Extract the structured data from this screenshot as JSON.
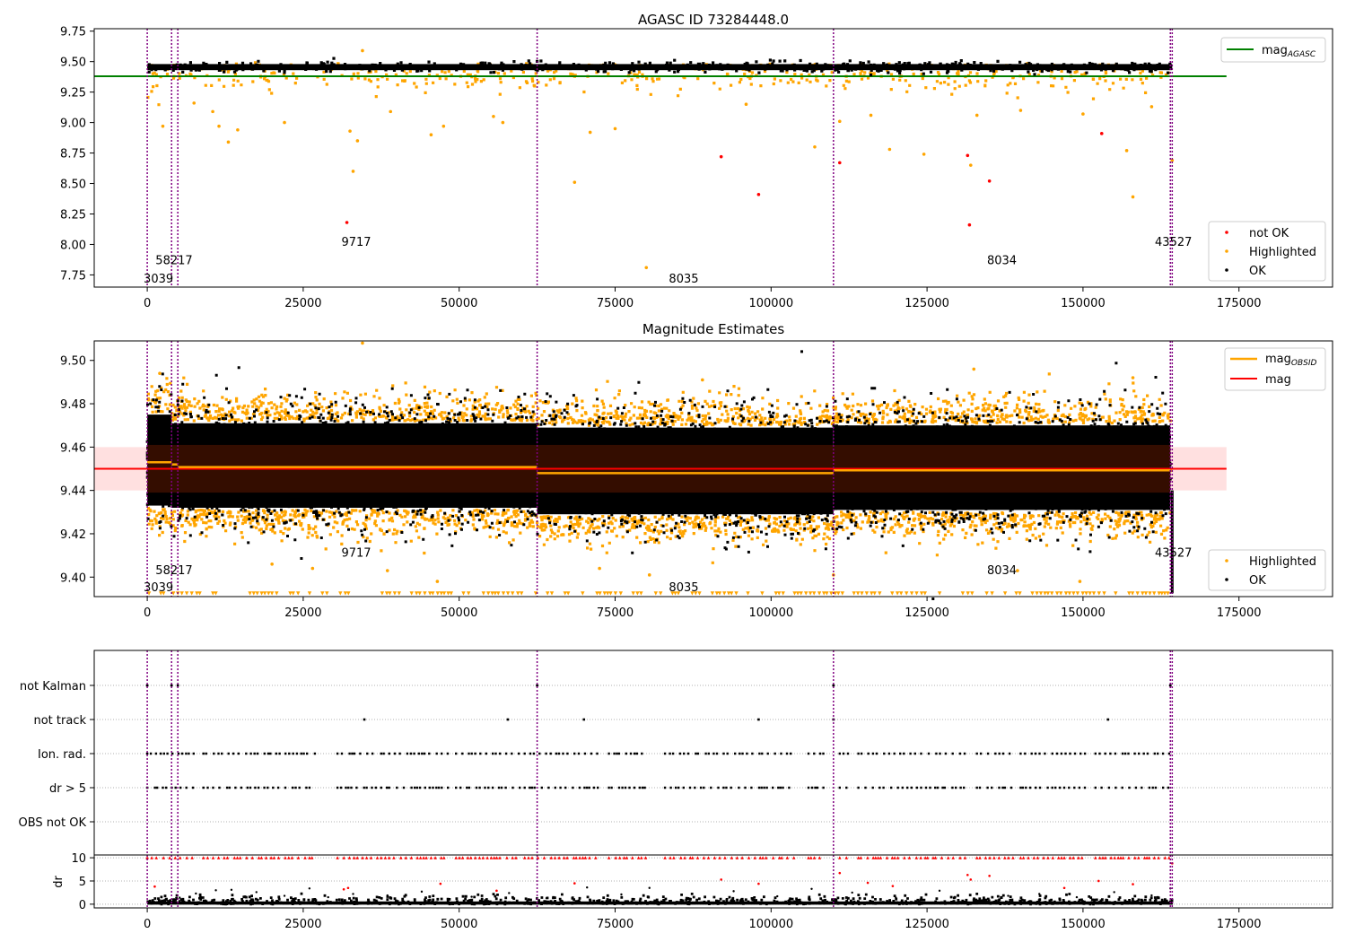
{
  "chart_data": [
    {
      "type": "scatter",
      "title": "AGASC ID 73284448.0",
      "xlim": [
        -8500,
        190000
      ],
      "ylim": [
        7.65,
        9.77
      ],
      "x_ticks": [
        0,
        25000,
        50000,
        75000,
        100000,
        125000,
        150000,
        175000
      ],
      "y_ticks": [
        7.75,
        8.0,
        8.25,
        8.5,
        8.75,
        9.0,
        9.25,
        9.5,
        9.75
      ],
      "y_tick_labels": [
        "7.75",
        "8.00",
        "8.25",
        "8.50",
        "8.75",
        "9.00",
        "9.25",
        "9.50",
        "9.75"
      ],
      "reference_line": {
        "name": "mag",
        "subscript": "AGASC",
        "value": 9.38,
        "x_range": [
          -8500,
          173000
        ],
        "color": "#008000"
      },
      "obsid_boundaries": [
        0,
        3900,
        4900,
        62500,
        110000,
        164000,
        164300
      ],
      "obsid_labels": [
        {
          "text": "3039",
          "x": 1800,
          "y": 7.725
        },
        {
          "text": "58217",
          "x": 4300,
          "y": 7.875
        },
        {
          "text": "9717",
          "x": 33500,
          "y": 8.025
        },
        {
          "text": "8035",
          "x": 86000,
          "y": 7.725
        },
        {
          "text": "8034",
          "x": 137000,
          "y": 7.875
        },
        {
          "text": "43527",
          "x": 164500,
          "y": 8.025
        }
      ],
      "ok_band": {
        "y_center": 9.455,
        "y_halfwidth": 0.025
      },
      "not_ok_points": [
        {
          "x": 32000,
          "y": 8.18
        },
        {
          "x": 92000,
          "y": 8.72
        },
        {
          "x": 98000,
          "y": 8.41
        },
        {
          "x": 111000,
          "y": 8.67
        },
        {
          "x": 131500,
          "y": 8.73
        },
        {
          "x": 131800,
          "y": 8.16
        },
        {
          "x": 135000,
          "y": 8.52
        },
        {
          "x": 153000,
          "y": 8.91
        }
      ],
      "highlighted_points": [
        {
          "x": 2500,
          "y": 8.97
        },
        {
          "x": 7500,
          "y": 9.16
        },
        {
          "x": 10500,
          "y": 9.09
        },
        {
          "x": 11500,
          "y": 8.97
        },
        {
          "x": 13000,
          "y": 8.84
        },
        {
          "x": 14500,
          "y": 8.94
        },
        {
          "x": 22000,
          "y": 9.0
        },
        {
          "x": 32500,
          "y": 8.93
        },
        {
          "x": 33000,
          "y": 8.6
        },
        {
          "x": 33700,
          "y": 8.85
        },
        {
          "x": 34500,
          "y": 9.59
        },
        {
          "x": 39000,
          "y": 9.09
        },
        {
          "x": 45500,
          "y": 8.9
        },
        {
          "x": 47500,
          "y": 8.97
        },
        {
          "x": 55500,
          "y": 9.05
        },
        {
          "x": 57000,
          "y": 9.0
        },
        {
          "x": 68500,
          "y": 8.51
        },
        {
          "x": 71000,
          "y": 8.92
        },
        {
          "x": 75000,
          "y": 8.95
        },
        {
          "x": 80000,
          "y": 7.81
        },
        {
          "x": 96000,
          "y": 9.15
        },
        {
          "x": 107000,
          "y": 8.8
        },
        {
          "x": 111000,
          "y": 9.01
        },
        {
          "x": 116000,
          "y": 9.06
        },
        {
          "x": 119000,
          "y": 8.78
        },
        {
          "x": 124500,
          "y": 8.74
        },
        {
          "x": 132000,
          "y": 8.65
        },
        {
          "x": 133000,
          "y": 9.06
        },
        {
          "x": 140000,
          "y": 9.1
        },
        {
          "x": 150000,
          "y": 9.07
        },
        {
          "x": 157000,
          "y": 8.77
        },
        {
          "x": 158000,
          "y": 8.39
        },
        {
          "x": 161000,
          "y": 9.13
        },
        {
          "x": 164300,
          "y": 8.69
        }
      ],
      "legends": [
        {
          "entries": [
            {
              "label": "mag",
              "subscript": "AGASC",
              "kind": "line",
              "color": "#008000"
            }
          ],
          "placement": "upper right"
        },
        {
          "entries": [
            {
              "label": "not OK",
              "kind": "dot",
              "color": "#ff0000"
            },
            {
              "label": "Highlighted",
              "kind": "dot",
              "color": "#ffa500"
            },
            {
              "label": "OK",
              "kind": "dot",
              "color": "#000000"
            }
          ],
          "placement": "lower right"
        }
      ]
    },
    {
      "type": "scatter",
      "title": "Magnitude Estimates",
      "xlim": [
        -8500,
        190000
      ],
      "ylim": [
        9.391,
        9.509
      ],
      "x_ticks": [
        0,
        25000,
        50000,
        75000,
        100000,
        125000,
        150000,
        175000
      ],
      "y_ticks": [
        9.4,
        9.42,
        9.44,
        9.46,
        9.48,
        9.5
      ],
      "y_tick_labels": [
        "9.40",
        "9.42",
        "9.44",
        "9.46",
        "9.48",
        "9.50"
      ],
      "mean_mag": {
        "name": "mag",
        "value": 9.45,
        "band": [
          9.44,
          9.46
        ],
        "x_range": [
          -8500,
          173000
        ],
        "color": "#ff0000"
      },
      "obsid_mags": {
        "name": "mag",
        "subscript": "OBSID",
        "color": "#ffa500",
        "segments": [
          {
            "x0": 0,
            "x1": 3900,
            "mag": 9.453
          },
          {
            "x0": 3900,
            "x1": 4900,
            "mag": 9.452
          },
          {
            "x0": 4900,
            "x1": 62500,
            "mag": 9.4508
          },
          {
            "x0": 62500,
            "x1": 110000,
            "mag": 9.448
          },
          {
            "x0": 110000,
            "x1": 164000,
            "mag": 9.4493
          },
          {
            "x0": 164000,
            "x1": 164300,
            "mag": 9.449
          }
        ]
      },
      "obsid_boundaries": [
        0,
        3900,
        4900,
        62500,
        110000,
        164000,
        164300
      ],
      "obsid_labels": [
        {
          "text": "3039",
          "x": 1800,
          "y": 9.3955
        },
        {
          "text": "58217",
          "x": 4300,
          "y": 9.4035
        },
        {
          "text": "9717",
          "x": 33500,
          "y": 9.4115
        },
        {
          "text": "8035",
          "x": 86000,
          "y": 9.3955
        },
        {
          "text": "8034",
          "x": 137000,
          "y": 9.4035
        },
        {
          "text": "43527",
          "x": 164500,
          "y": 9.4115
        }
      ],
      "ok_cloud": [
        {
          "x0": 0,
          "x1": 3900,
          "low": 9.426,
          "high": 9.482
        },
        {
          "x0": 3900,
          "x1": 62500,
          "low": 9.425,
          "high": 9.478
        },
        {
          "x0": 62500,
          "x1": 110000,
          "low": 9.422,
          "high": 9.476
        },
        {
          "x0": 110000,
          "x1": 164000,
          "low": 9.424,
          "high": 9.477
        }
      ],
      "highlighted_floor": 9.3925,
      "highlighted_points": [
        {
          "x": 34500,
          "y": 9.508
        },
        {
          "x": 132500,
          "y": 9.496
        },
        {
          "x": 2000,
          "y": 9.494
        },
        {
          "x": 89000,
          "y": 9.491
        },
        {
          "x": 158000,
          "y": 9.492
        },
        {
          "x": 20000,
          "y": 9.406
        },
        {
          "x": 26500,
          "y": 9.404
        },
        {
          "x": 38500,
          "y": 9.403
        },
        {
          "x": 72500,
          "y": 9.404
        },
        {
          "x": 80500,
          "y": 9.401
        },
        {
          "x": 110000,
          "y": 9.401
        },
        {
          "x": 139500,
          "y": 9.403
        },
        {
          "x": 149500,
          "y": 9.398
        },
        {
          "x": 46500,
          "y": 9.398
        }
      ],
      "legends": [
        {
          "entries": [
            {
              "label": "mag",
              "subscript": "OBSID",
              "kind": "line",
              "color": "#ffa500"
            },
            {
              "label": "mag",
              "kind": "line",
              "color": "#ff0000"
            }
          ],
          "placement": "upper right"
        },
        {
          "entries": [
            {
              "label": "Highlighted",
              "kind": "dot",
              "color": "#ffa500"
            },
            {
              "label": "OK",
              "kind": "dot",
              "color": "#000000"
            }
          ],
          "placement": "lower right"
        }
      ]
    },
    {
      "type": "scatter",
      "title": "",
      "xlim": [
        -8500,
        190000
      ],
      "categories": [
        "not Kalman",
        "not track",
        "Ion. rad.",
        "dr > 5",
        "OBS not OK"
      ],
      "obsid_boundaries": [
        0,
        3900,
        4900,
        62500,
        110000,
        164000,
        164300
      ],
      "flag_points": {
        "not Kalman": [
          0,
          3900,
          4900,
          62500,
          110000,
          164000
        ],
        "not track": [
          34800,
          57800,
          70000,
          98000,
          110000,
          154000
        ],
        "Ion. rad.": {
          "clusters": [
            [
              0,
              7500
            ],
            [
              9000,
              27000
            ],
            [
              30500,
              37000
            ],
            [
              37500,
              48500
            ],
            [
              49500,
              60000
            ],
            [
              60500,
              72500
            ],
            [
              74000,
              80000
            ],
            [
              83000,
              104000
            ],
            [
              106000,
              108500
            ],
            [
              111000,
              112500
            ],
            [
              114000,
              131500
            ],
            [
              133000,
              139000
            ],
            [
              140000,
              150500
            ],
            [
              152000,
              164000
            ]
          ]
        },
        "dr > 5": {
          "clusters": [
            [
              0,
              7500
            ],
            [
              9000,
              27000
            ],
            [
              30500,
              37000
            ],
            [
              37500,
              48500
            ],
            [
              49500,
              60000
            ],
            [
              60500,
              72500
            ],
            [
              74000,
              80000
            ],
            [
              83000,
              104000
            ],
            [
              106000,
              108500
            ],
            [
              111000,
              112500
            ],
            [
              114000,
              131500
            ],
            [
              133000,
              139000
            ],
            [
              140000,
              150500
            ],
            [
              152000,
              164000
            ]
          ]
        },
        "OBS not OK": []
      }
    },
    {
      "type": "scatter",
      "title": "",
      "ylabel": "dr",
      "xlim": [
        -8500,
        190000
      ],
      "ylim": [
        -0.8,
        10.6
      ],
      "x_ticks": [
        0,
        25000,
        50000,
        75000,
        100000,
        125000,
        150000,
        175000
      ],
      "y_ticks": [
        0,
        5,
        10
      ],
      "y_tick_labels": [
        "0",
        "5",
        "10"
      ],
      "clipped_at": 10,
      "obsid_boundaries": [
        0,
        3900,
        4900,
        62500,
        110000,
        164000,
        164300
      ],
      "clipped_point_clusters": [
        [
          0,
          7500
        ],
        [
          9000,
          27000
        ],
        [
          30500,
          37000
        ],
        [
          37500,
          48500
        ],
        [
          49500,
          60000
        ],
        [
          60500,
          72500
        ],
        [
          74000,
          80000
        ],
        [
          83000,
          104000
        ],
        [
          106000,
          108500
        ],
        [
          111000,
          112500
        ],
        [
          114000,
          131500
        ],
        [
          133000,
          139000
        ],
        [
          140000,
          150500
        ],
        [
          152000,
          164000
        ]
      ],
      "red_points": [
        {
          "x": 1200,
          "y": 3.8
        },
        {
          "x": 31500,
          "y": 3.2
        },
        {
          "x": 32200,
          "y": 3.5
        },
        {
          "x": 47000,
          "y": 4.4
        },
        {
          "x": 56000,
          "y": 2.9
        },
        {
          "x": 68500,
          "y": 4.5
        },
        {
          "x": 92000,
          "y": 5.3
        },
        {
          "x": 98000,
          "y": 4.4
        },
        {
          "x": 111000,
          "y": 6.7
        },
        {
          "x": 115500,
          "y": 4.6
        },
        {
          "x": 119500,
          "y": 3.9
        },
        {
          "x": 131500,
          "y": 6.3
        },
        {
          "x": 132000,
          "y": 5.3
        },
        {
          "x": 135000,
          "y": 6.1
        },
        {
          "x": 147000,
          "y": 3.5
        },
        {
          "x": 152500,
          "y": 5.0
        },
        {
          "x": 158000,
          "y": 4.3
        },
        {
          "x": 164300,
          "y": 8.8
        }
      ],
      "black_scatter": [
        {
          "x": 5200,
          "y": 1.4
        },
        {
          "x": 7800,
          "y": 2.3
        },
        {
          "x": 11000,
          "y": 3.0
        },
        {
          "x": 13500,
          "y": 3.1
        },
        {
          "x": 17500,
          "y": 2.6
        },
        {
          "x": 22000,
          "y": 1.8
        },
        {
          "x": 26000,
          "y": 3.4
        },
        {
          "x": 29000,
          "y": 1.5
        },
        {
          "x": 33000,
          "y": 2.2
        },
        {
          "x": 38500,
          "y": 1.9
        },
        {
          "x": 44000,
          "y": 2.7
        },
        {
          "x": 52000,
          "y": 1.6
        },
        {
          "x": 58000,
          "y": 2.4
        },
        {
          "x": 64000,
          "y": 1.3
        },
        {
          "x": 70500,
          "y": 3.6
        },
        {
          "x": 76000,
          "y": 2.1
        },
        {
          "x": 80500,
          "y": 3.5
        },
        {
          "x": 87000,
          "y": 1.2
        },
        {
          "x": 94000,
          "y": 2.8
        },
        {
          "x": 101000,
          "y": 1.7
        },
        {
          "x": 106500,
          "y": 3.3
        },
        {
          "x": 113000,
          "y": 2.5
        },
        {
          "x": 120000,
          "y": 1.4
        },
        {
          "x": 127000,
          "y": 2.9
        },
        {
          "x": 138000,
          "y": 1.8
        },
        {
          "x": 143000,
          "y": 2.2
        },
        {
          "x": 149000,
          "y": 1.5
        },
        {
          "x": 155000,
          "y": 2.6
        },
        {
          "x": 161000,
          "y": 1.9
        },
        {
          "x": 164000,
          "y": 3.4
        }
      ]
    }
  ]
}
